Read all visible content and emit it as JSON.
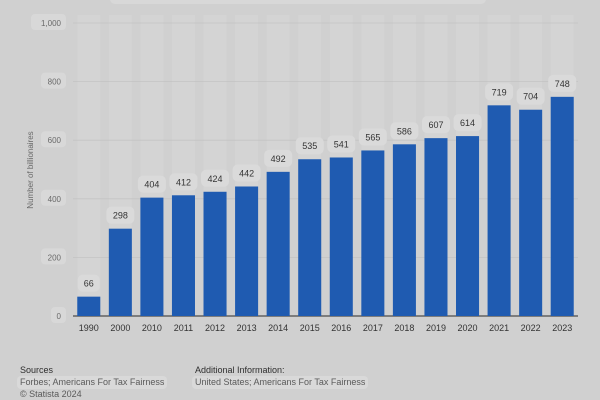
{
  "chart_data": {
    "type": "bar",
    "categories": [
      "1990",
      "2000",
      "2010",
      "2011",
      "2012",
      "2013",
      "2014",
      "2015",
      "2016",
      "2017",
      "2018",
      "2019",
      "2020",
      "2021",
      "2022",
      "2023"
    ],
    "values": [
      66,
      298,
      404,
      412,
      424,
      442,
      492,
      535,
      541,
      565,
      586,
      607,
      614,
      719,
      704,
      748
    ],
    "title": "",
    "xlabel": "",
    "ylabel": "Number of billionaires",
    "ylim": [
      0,
      1000
    ],
    "yticks": [
      0,
      200,
      400,
      600,
      800,
      1000
    ],
    "ytick_labels": [
      "0",
      "200",
      "400",
      "600",
      "800",
      "1,000"
    ],
    "grid": true,
    "bar_color": "#1f5bb1",
    "data_labels": true
  },
  "footer": {
    "sources_title": "Sources",
    "sources_text": "Forbes; Americans For Tax Fairness",
    "copyright": "© Statista 2024",
    "additional_title": "Additional Information:",
    "additional_text": "United States; Americans For Tax Fairness"
  },
  "colors": {
    "background": "#d0d0d0",
    "bar": "#1f5bb1",
    "grid": "#c3c3c3",
    "column_band": "#d4d4d4"
  }
}
